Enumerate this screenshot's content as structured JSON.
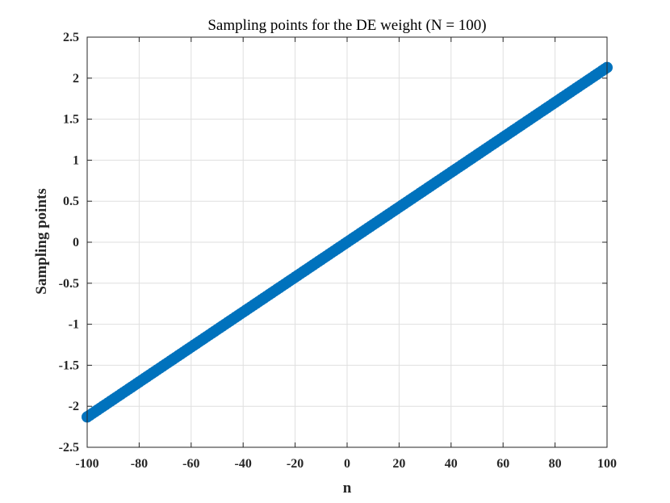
{
  "chart_data": {
    "type": "scatter",
    "title": "Sampling points for the DE weight (N = 100)",
    "xlabel": "n",
    "ylabel": "Sampling points",
    "xlim": [
      -100,
      100
    ],
    "ylim": [
      -2.5,
      2.5
    ],
    "xticks": [
      -100,
      -80,
      -60,
      -40,
      -20,
      0,
      20,
      40,
      60,
      80,
      100
    ],
    "xtick_labels": [
      "-100",
      "-80",
      "-60",
      "-40",
      "-20",
      "0",
      "20",
      "40",
      "60",
      "80",
      "100"
    ],
    "yticks": [
      -2.5,
      -2,
      -1.5,
      -1,
      -0.5,
      0,
      0.5,
      1,
      1.5,
      2,
      2.5
    ],
    "ytick_labels": [
      "-2.5",
      "-2",
      "-1.5",
      "-1",
      "-0.5",
      "0",
      "0.5",
      "1",
      "1.5",
      "2",
      "2.5"
    ],
    "grid": true,
    "marker_color": "#0072bd",
    "series": [
      {
        "x_start": -100,
        "x_end": 100,
        "x_step": 1,
        "y_start": -2.13,
        "y_end": 2.13
      }
    ]
  }
}
